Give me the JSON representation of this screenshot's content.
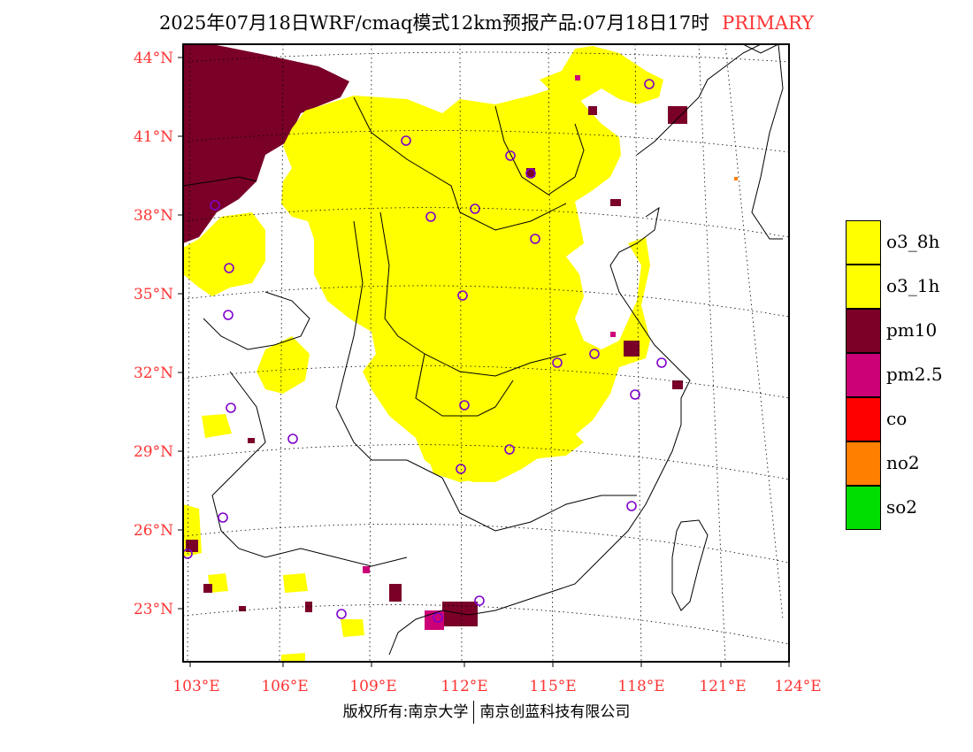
{
  "header": {
    "title": "2025年07月18日WRF/cmaq模式12km预报产品:07月18日17时",
    "tag": "PRIMARY"
  },
  "axes": {
    "lat_labels": [
      "44°N",
      "41°N",
      "38°N",
      "35°N",
      "32°N",
      "29°N",
      "26°N",
      "23°N"
    ],
    "lon_labels": [
      "103°E",
      "106°E",
      "109°E",
      "112°E",
      "115°E",
      "118°E",
      "121°E",
      "124°E"
    ],
    "label_color": "#ff3333"
  },
  "legend": {
    "items": [
      {
        "label": "o3_8h",
        "color": "#ffff00"
      },
      {
        "label": "o3_1h",
        "color": "#ffff00"
      },
      {
        "label": "pm10",
        "color": "#7a0028"
      },
      {
        "label": "pm2.5",
        "color": "#cc0077"
      },
      {
        "label": "co",
        "color": "#ff0000"
      },
      {
        "label": "no2",
        "color": "#ff7f00"
      },
      {
        "label": "so2",
        "color": "#00dd00"
      }
    ]
  },
  "map": {
    "regions": [
      {
        "pollutant": "pm10",
        "area": "northwest Inner Mongolia / Ningxia"
      },
      {
        "pollutant": "o3",
        "area": "North China Plain, Shanxi, Henan, Hebei, Shandong, Hubei, Jiangxi"
      }
    ],
    "station_marker": "circle"
  },
  "footer": {
    "left": "版权所有:南京大学",
    "right": "南京创蓝科技有限公司"
  }
}
